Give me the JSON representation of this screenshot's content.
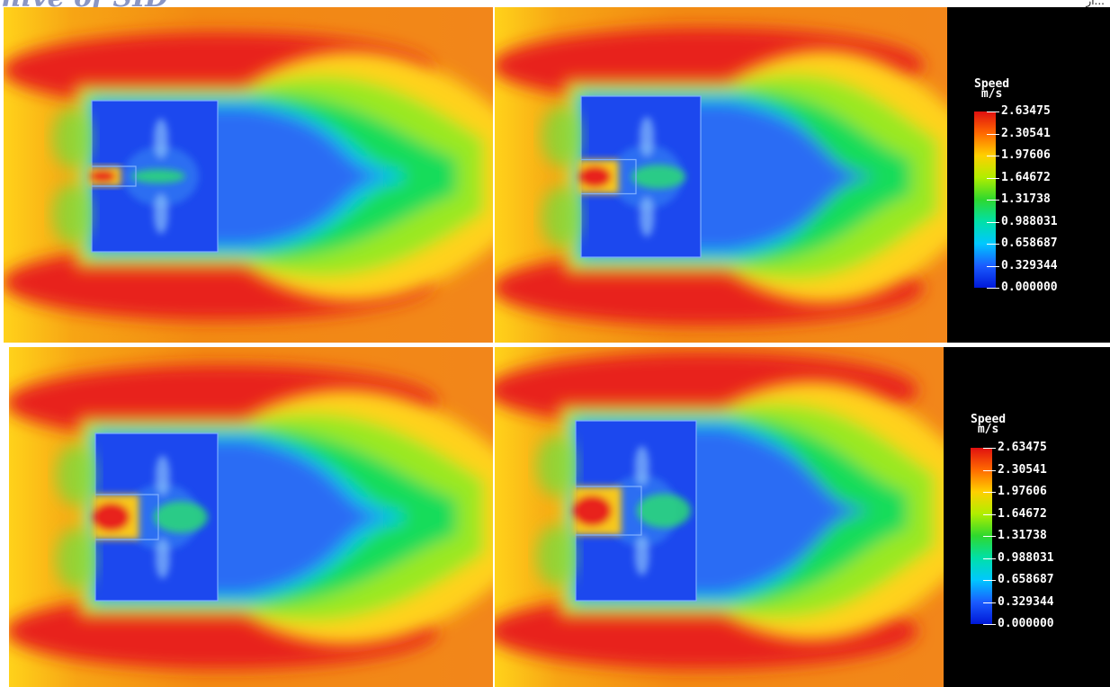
{
  "header": {
    "title_fragment": "hive of SID",
    "right_fragment": "ار..."
  },
  "legend": {
    "title": "Speed",
    "unit": "m/s",
    "ticks": [
      "2.63475",
      "2.30541",
      "1.97606",
      "1.64672",
      "1.31738",
      "0.988031",
      "0.658687",
      "0.329344",
      "0.000000"
    ],
    "colors": [
      "#e01010",
      "#ff6a00",
      "#ffd000",
      "#b0ee00",
      "#2ed82e",
      "#00e0a8",
      "#00c8ff",
      "#1a5cff",
      "#0018d8"
    ]
  },
  "panels": [
    {
      "inlet_opening": 0.15
    },
    {
      "inlet_opening": 0.35
    },
    {
      "inlet_opening": 0.5
    },
    {
      "inlet_opening": 0.55
    }
  ],
  "colors": {
    "far_field": "#f28a12",
    "core": "#e8231c",
    "body": "#1c48ee"
  }
}
